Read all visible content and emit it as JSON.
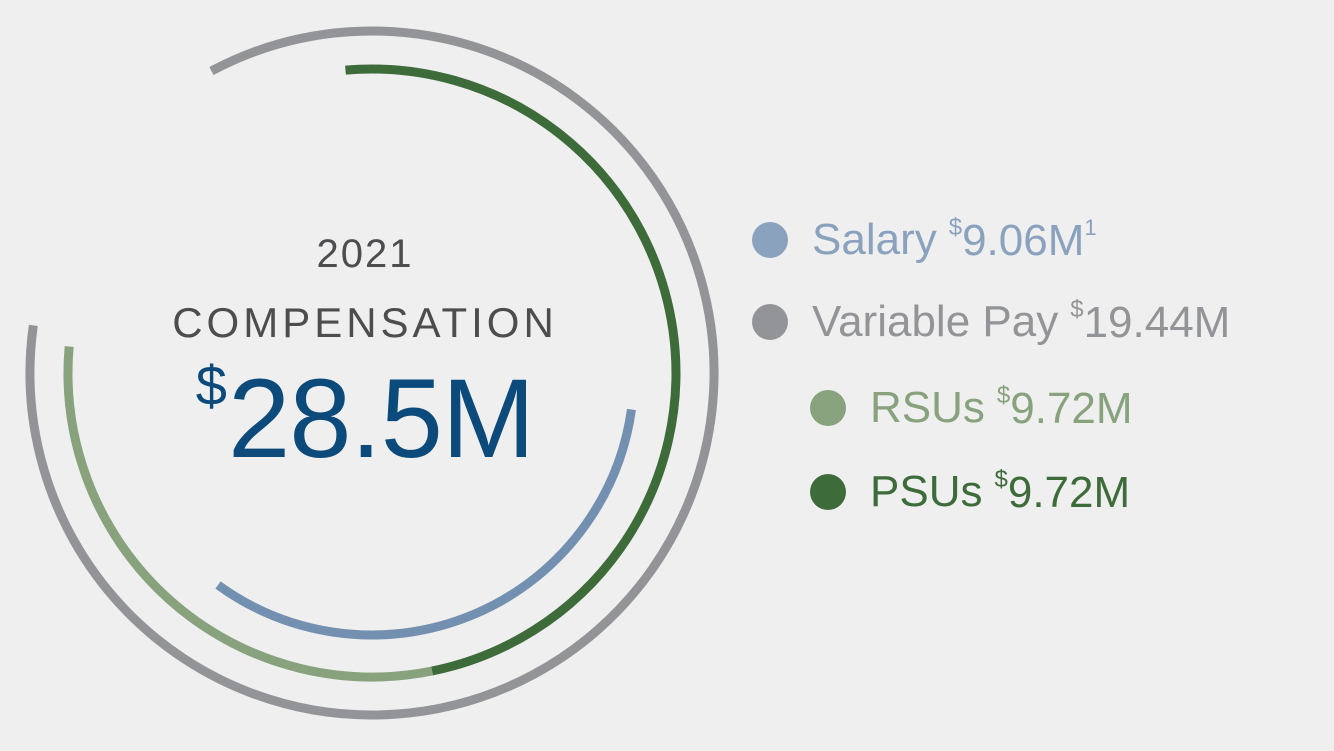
{
  "header": {
    "year": "2021",
    "title": "COMPENSATION",
    "currency": "$",
    "total": "28.5M"
  },
  "legend": [
    {
      "label": "Salary",
      "currency": "$",
      "value": "9.06M",
      "footnote": "1",
      "color": "#8aa2bd"
    },
    {
      "label": "Variable Pay",
      "currency": "$",
      "value": "19.44M",
      "footnote": "",
      "color": "#929497"
    },
    {
      "label": "RSUs",
      "currency": "$",
      "value": "9.72M",
      "footnote": "",
      "color": "#87a27d"
    },
    {
      "label": "PSUs",
      "currency": "$",
      "value": "9.72M",
      "footnote": "",
      "color": "#3e6b3a"
    }
  ],
  "chart_data": {
    "type": "radial-bar",
    "title": "2021 COMPENSATION",
    "total": 28.5,
    "unit": "$M",
    "series": [
      {
        "name": "Salary",
        "value": 9.06,
        "color": "#7490b0"
      },
      {
        "name": "Variable Pay",
        "value": 19.44,
        "color": "#929497"
      },
      {
        "name": "RSUs",
        "value": 9.72,
        "color": "#87a27d"
      },
      {
        "name": "PSUs",
        "value": 9.72,
        "color": "#3e6b3a"
      }
    ]
  }
}
